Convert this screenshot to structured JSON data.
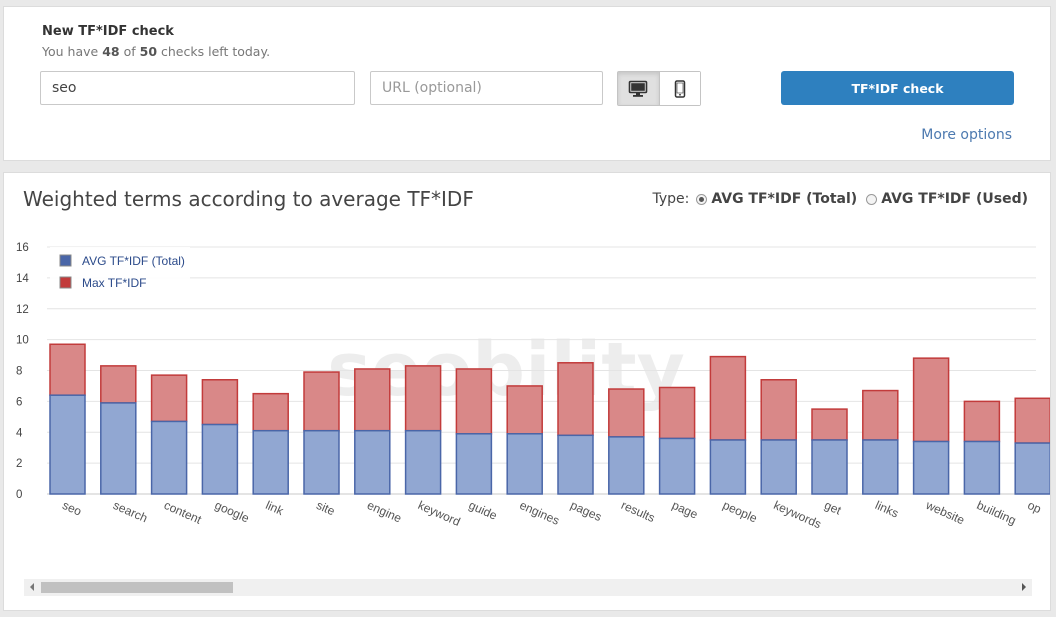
{
  "form": {
    "title": "New TF*IDF check",
    "quota_prefix": "You have",
    "checks_left": "48",
    "quota_of": "of",
    "checks_total": "50",
    "quota_suffix": "checks left today.",
    "keyword_value": "seo",
    "url_placeholder": "URL (optional)",
    "device_options": [
      "desktop",
      "mobile"
    ],
    "selected_device": "desktop",
    "submit_label": "TF*IDF check",
    "more_options": "More options"
  },
  "chart_section": {
    "title": "Weighted terms according to average TF*IDF",
    "type_label": "Type:",
    "type_options": [
      "AVG TF*IDF (Total)",
      "AVG TF*IDF (Used)"
    ],
    "selected_type": "AVG TF*IDF (Total)",
    "watermark": "seobility"
  },
  "colors": {
    "avg_fill": "#91a7d2",
    "avg_stroke": "#4a66a8",
    "max_fill": "#d98888",
    "max_stroke": "#c23b3b",
    "button": "#2e80bf",
    "link": "#4d7ab0"
  },
  "chart_data": {
    "type": "bar",
    "stacked": true,
    "categories": [
      "seo",
      "search",
      "content",
      "google",
      "link",
      "site",
      "engine",
      "keyword",
      "guide",
      "engines",
      "pages",
      "results",
      "page",
      "people",
      "keywords",
      "get",
      "links",
      "website",
      "building",
      "op"
    ],
    "series": [
      {
        "name": "AVG TF*IDF (Total)",
        "values": [
          6.4,
          5.9,
          4.7,
          4.5,
          4.1,
          4.1,
          4.1,
          4.1,
          3.9,
          3.9,
          3.8,
          3.7,
          3.6,
          3.5,
          3.5,
          3.5,
          3.5,
          3.4,
          3.4,
          3.3
        ]
      },
      {
        "name": "Max TF*IDF",
        "values": [
          9.7,
          8.3,
          7.7,
          7.4,
          6.5,
          7.9,
          8.1,
          8.3,
          8.1,
          7.0,
          8.5,
          6.8,
          6.9,
          8.9,
          7.4,
          5.5,
          6.7,
          8.8,
          6.0,
          6.2
        ]
      }
    ],
    "y_ticks": [
      0,
      2,
      4,
      6,
      8,
      10,
      12,
      14,
      16
    ],
    "ylim": [
      0,
      16
    ],
    "legend_position": "top-left",
    "grid": true
  }
}
